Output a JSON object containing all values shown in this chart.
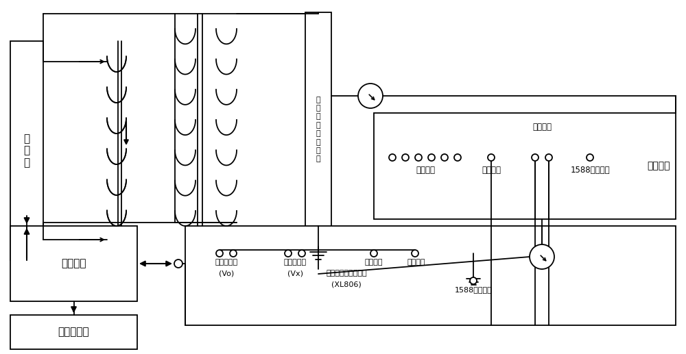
{
  "bg_color": "#ffffff",
  "line_color": "#000000",
  "labels": {
    "heng_ya_yuan": "恒\n压\n源",
    "kong_zhi_ping_tai": "控制平台",
    "hou_tai_ji_suan_ji": "后台计算机",
    "dian_zi_hu_gan_qi": "电\n子\n式\n电\n压\n互\n感\n器",
    "he_bing_dan_yuan": "合并单元",
    "shu_zi_shu_ru": "数字输入",
    "shi_zhong_shu_ru_top": "时钟输入",
    "shu_zi_shu_chu": "数字输出",
    "yi_wu_ba_ba_io": "1588输入输出",
    "mo_ni_liang_shu_ru": "模拟量输入",
    "vo": "(Vo)",
    "shu_zi_liang_shu_ru": "数字量输入",
    "vx": "(Vx)",
    "dian_zi_xiao_zhun_yi": "电子式互感器校验仪",
    "xl806": "(XL806)",
    "shi_zhong_shu_chu": "时钟输出",
    "shi_zhong_shu_ru_bot": "时钟输入",
    "yi_wu_ba_ba_shu_ru": "1588输入输入"
  },
  "figsize": [
    10.0,
    5.17
  ],
  "dpi": 100
}
